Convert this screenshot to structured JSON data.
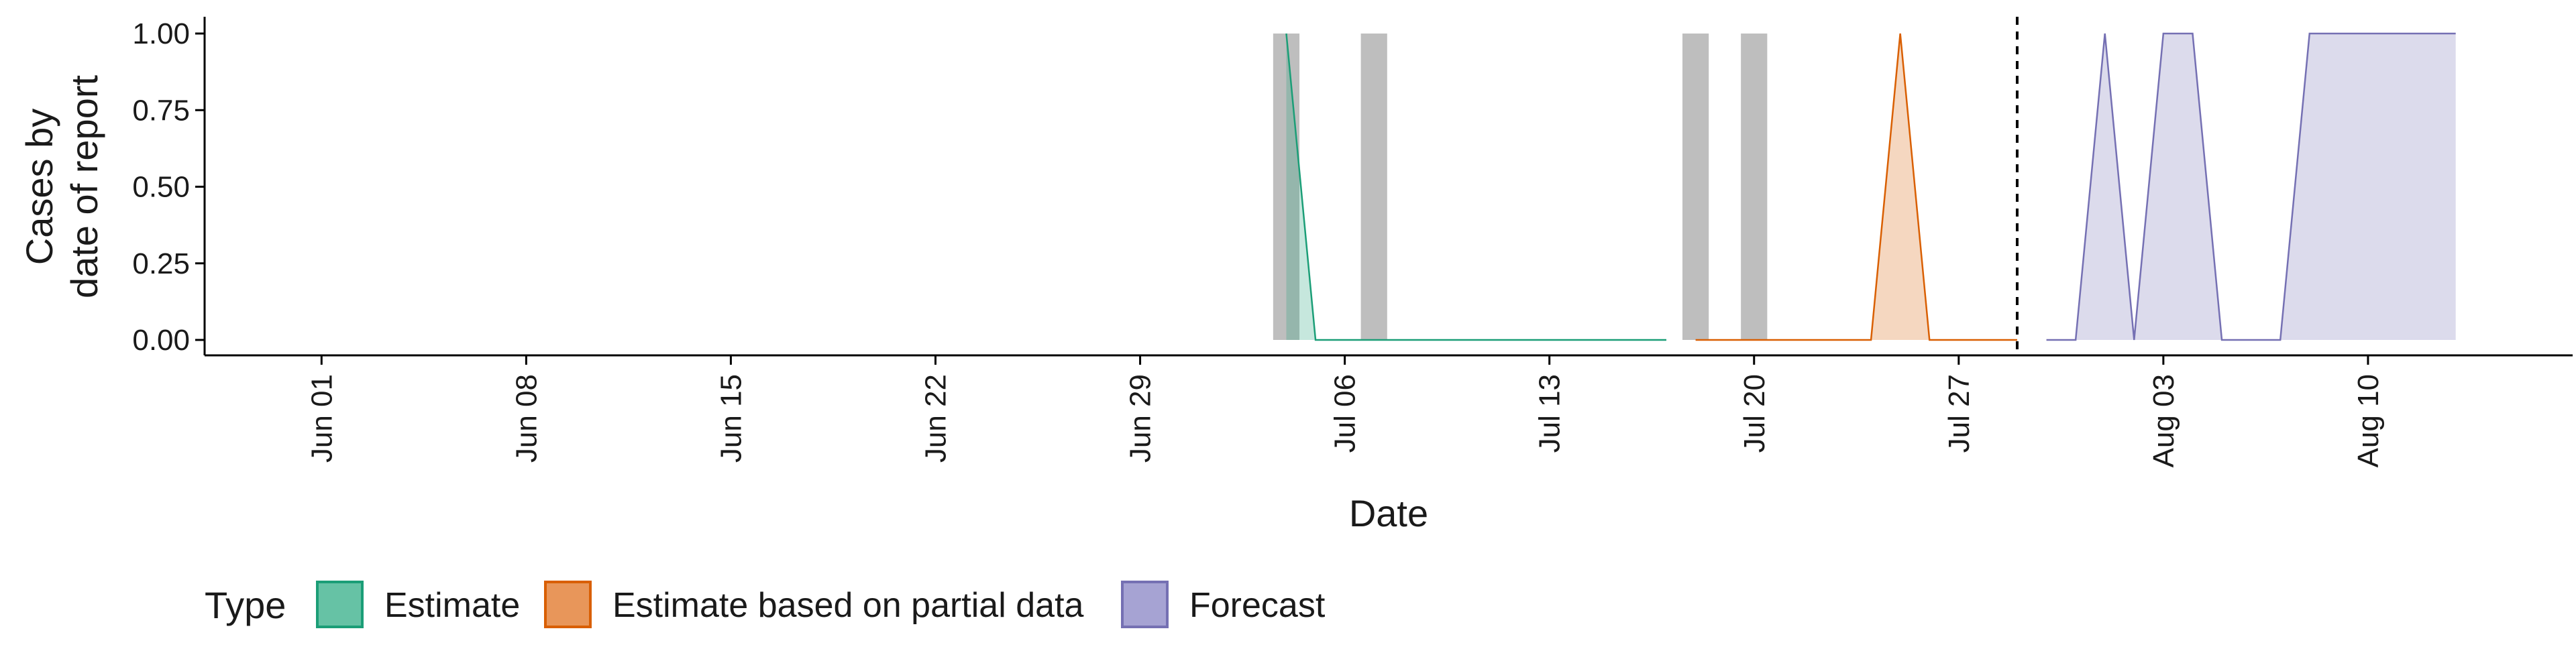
{
  "chart_data": {
    "type": "area",
    "xlabel": "Date",
    "ylabel_lines": [
      "Cases by",
      "date of report"
    ],
    "y_ticks": [
      0.0,
      0.25,
      0.5,
      0.75,
      1.0
    ],
    "y_tick_labels": [
      "0.00",
      "0.25",
      "0.50",
      "0.75",
      "1.00"
    ],
    "ylim": [
      0,
      1
    ],
    "xlim": [
      "2020-05-28",
      "2020-08-17"
    ],
    "x_ticks": [
      "2020-06-01",
      "2020-06-08",
      "2020-06-15",
      "2020-06-22",
      "2020-06-29",
      "2020-07-06",
      "2020-07-13",
      "2020-07-20",
      "2020-07-27",
      "2020-08-03",
      "2020-08-10"
    ],
    "x_tick_labels": [
      "Jun 01",
      "Jun 08",
      "Jun 15",
      "Jun 22",
      "Jun 29",
      "Jul 06",
      "Jul 13",
      "Jul 20",
      "Jul 27",
      "Aug 03",
      "Aug 10"
    ],
    "grid": false,
    "forecast_start_line": "2020-07-29",
    "reported_cases_bars": [
      {
        "date": "2020-07-04",
        "value": 1
      },
      {
        "date": "2020-07-07",
        "value": 1
      },
      {
        "date": "2020-07-18",
        "value": 1
      },
      {
        "date": "2020-07-20",
        "value": 1
      }
    ],
    "series": [
      {
        "name": "Estimate",
        "color": "#1B9E77",
        "fill": "#1B9E77",
        "x": [
          "2020-07-04",
          "2020-07-05",
          "2020-07-06",
          "2020-07-07",
          "2020-07-08",
          "2020-07-09",
          "2020-07-10",
          "2020-07-11",
          "2020-07-12",
          "2020-07-13",
          "2020-07-14",
          "2020-07-15",
          "2020-07-16",
          "2020-07-17"
        ],
        "y": [
          1,
          0,
          0,
          0,
          0,
          0,
          0,
          0,
          0,
          0,
          0,
          0,
          0,
          0
        ]
      },
      {
        "name": "Estimate based on partial data",
        "color": "#D95F02",
        "fill": "#D95F02",
        "x": [
          "2020-07-18",
          "2020-07-19",
          "2020-07-20",
          "2020-07-21",
          "2020-07-22",
          "2020-07-23",
          "2020-07-24",
          "2020-07-25",
          "2020-07-26",
          "2020-07-27",
          "2020-07-28",
          "2020-07-29"
        ],
        "y": [
          0,
          0,
          0,
          0,
          0,
          0,
          0,
          1,
          0,
          0,
          0,
          0
        ]
      },
      {
        "name": "Forecast",
        "color": "#7570B3",
        "fill": "#7570B3",
        "x": [
          "2020-07-30",
          "2020-07-31",
          "2020-08-01",
          "2020-08-02",
          "2020-08-03",
          "2020-08-04",
          "2020-08-05",
          "2020-08-06",
          "2020-08-07",
          "2020-08-08",
          "2020-08-09",
          "2020-08-10",
          "2020-08-11",
          "2020-08-12",
          "2020-08-13"
        ],
        "y": [
          0,
          0,
          1,
          0,
          1,
          1,
          0,
          0,
          0,
          1,
          1,
          1,
          1,
          1,
          1
        ]
      }
    ],
    "legend": {
      "position": "bottom-left",
      "title": "Type",
      "entries": [
        {
          "label": "Estimate",
          "fill": "#66C2A5",
          "stroke": "#1B9E77"
        },
        {
          "label": "Estimate based on partial data",
          "fill": "#E8965A",
          "stroke": "#D95F02"
        },
        {
          "label": "Forecast",
          "fill": "#A6A3D3",
          "stroke": "#7570B3"
        }
      ]
    },
    "colors": {
      "reported_bar": "#BEBEBE",
      "axis": "#000000",
      "forecast_line": "#000000"
    }
  }
}
